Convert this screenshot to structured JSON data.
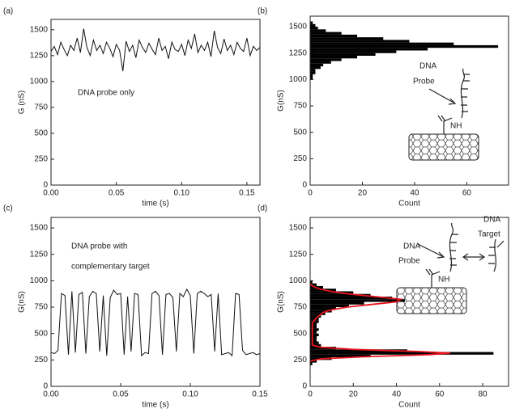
{
  "chart_data": [
    {
      "type": "line",
      "label": "(a)",
      "annotation": [
        "DNA probe only"
      ],
      "xlabel": "time (s)",
      "ylabel": "G (nS)",
      "xlim": [
        0,
        0.16
      ],
      "xticks": [
        {
          "value": 0,
          "label": "0.00"
        },
        {
          "value": 0.05,
          "label": "0.05"
        },
        {
          "value": 0.1,
          "label": "0.10"
        },
        {
          "value": 0.15,
          "label": "0.15"
        }
      ],
      "ylim": [
        0,
        1600
      ],
      "yticks": [
        0,
        250,
        500,
        750,
        1000,
        1250,
        1500
      ],
      "color": "#111111",
      "x": [
        0,
        0.0025,
        0.005,
        0.0075,
        0.01,
        0.0125,
        0.015,
        0.0175,
        0.02,
        0.0225,
        0.025,
        0.0275,
        0.03,
        0.0325,
        0.035,
        0.0375,
        0.04,
        0.0425,
        0.045,
        0.0475,
        0.05,
        0.0525,
        0.055,
        0.0575,
        0.06,
        0.0625,
        0.065,
        0.0675,
        0.07,
        0.0725,
        0.075,
        0.0775,
        0.08,
        0.0825,
        0.085,
        0.0875,
        0.09,
        0.0925,
        0.095,
        0.0975,
        0.1,
        0.1025,
        0.105,
        0.1075,
        0.11,
        0.1125,
        0.115,
        0.1175,
        0.12,
        0.1225,
        0.125,
        0.1275,
        0.13,
        0.1325,
        0.135,
        0.1375,
        0.14,
        0.1425,
        0.145,
        0.1475,
        0.15,
        0.1525,
        0.155,
        0.1575,
        0.16
      ],
      "values": [
        1290,
        1340,
        1260,
        1380,
        1310,
        1250,
        1350,
        1300,
        1420,
        1280,
        1510,
        1330,
        1250,
        1400,
        1300,
        1350,
        1270,
        1380,
        1320,
        1240,
        1360,
        1300,
        1100,
        1390,
        1290,
        1350,
        1230,
        1400,
        1330,
        1280,
        1370,
        1310,
        1260,
        1420,
        1300,
        1340,
        1220,
        1380,
        1310,
        1290,
        1360,
        1250,
        1400,
        1320,
        1460,
        1280,
        1350,
        1300,
        1380,
        1240,
        1490,
        1330,
        1270,
        1410,
        1300,
        1350,
        1260,
        1380,
        1320,
        1290,
        1420,
        1250,
        1340,
        1300,
        1330
      ]
    },
    {
      "type": "histogram",
      "label": "(b)",
      "xlabel": "Count",
      "ylabel": "G(nS)",
      "diagram_labels": [
        "DNA",
        "Probe",
        "NH"
      ],
      "xlim": [
        0,
        76
      ],
      "xticks": [
        0,
        20,
        40,
        60
      ],
      "ylim": [
        0,
        1600
      ],
      "yticks": [
        0,
        250,
        500,
        750,
        1000,
        1250,
        1500
      ],
      "color": "#000000",
      "bins": [
        1000,
        1025,
        1050,
        1075,
        1100,
        1125,
        1150,
        1175,
        1200,
        1225,
        1250,
        1275,
        1300,
        1325,
        1350,
        1375,
        1400,
        1425,
        1450,
        1475,
        1500,
        1525,
        1550
      ],
      "counts": [
        1,
        1,
        2,
        2,
        4,
        5,
        8,
        12,
        18,
        25,
        33,
        45,
        72,
        55,
        38,
        28,
        18,
        12,
        6,
        3,
        2,
        1
      ]
    },
    {
      "type": "line",
      "label": "(c)",
      "annotation": [
        "DNA probe with",
        "complementary target"
      ],
      "xlabel": "time (s)",
      "ylabel": "G(nS)",
      "xlim": [
        0,
        0.15
      ],
      "xticks": [
        {
          "value": 0,
          "label": "0.00"
        },
        {
          "value": 0.05,
          "label": "0.05"
        },
        {
          "value": 0.1,
          "label": "0.10"
        },
        {
          "value": 0.15,
          "label": "0.15"
        }
      ],
      "ylim": [
        0,
        1600
      ],
      "yticks": [
        0,
        250,
        500,
        750,
        1000,
        1250,
        1500
      ],
      "color": "#111111",
      "x": [
        0,
        0.0025,
        0.005,
        0.0075,
        0.01,
        0.0125,
        0.015,
        0.0175,
        0.02,
        0.0225,
        0.025,
        0.0275,
        0.03,
        0.0325,
        0.035,
        0.0375,
        0.04,
        0.0425,
        0.045,
        0.0475,
        0.05,
        0.0525,
        0.055,
        0.0575,
        0.06,
        0.0625,
        0.065,
        0.0675,
        0.07,
        0.0725,
        0.075,
        0.0775,
        0.08,
        0.0825,
        0.085,
        0.0875,
        0.09,
        0.0925,
        0.095,
        0.0975,
        0.1,
        0.1025,
        0.105,
        0.1075,
        0.11,
        0.1125,
        0.115,
        0.1175,
        0.12,
        0.1225,
        0.125,
        0.1275,
        0.13,
        0.1325,
        0.135,
        0.1375,
        0.14,
        0.1425,
        0.145,
        0.1475,
        0.15
      ],
      "values": [
        320,
        310,
        340,
        880,
        860,
        300,
        900,
        320,
        870,
        890,
        310,
        850,
        900,
        880,
        330,
        860,
        290,
        840,
        910,
        870,
        880,
        300,
        850,
        330,
        880,
        870,
        290,
        320,
        310,
        880,
        900,
        860,
        300,
        870,
        880,
        840,
        330,
        880,
        850,
        920,
        860,
        310,
        880,
        900,
        880,
        850,
        870,
        330,
        880,
        300,
        310,
        320,
        290,
        880,
        870,
        340,
        300,
        310,
        320,
        300,
        310
      ]
    },
    {
      "type": "histogram",
      "label": "(d)",
      "xlabel": "Count",
      "ylabel": "G(nS)",
      "diagram_labels": [
        "DNA",
        "Probe",
        "NH",
        "DNA",
        "Target"
      ],
      "xlim": [
        0,
        92
      ],
      "xticks": [
        0,
        20,
        40,
        60,
        80
      ],
      "ylim": [
        0,
        1600
      ],
      "yticks": [
        0,
        250,
        500,
        750,
        1000,
        1250,
        1500
      ],
      "color": "#000000",
      "bins": [
        200,
        225,
        250,
        275,
        300,
        325,
        350,
        375,
        400,
        425,
        450,
        475,
        500,
        525,
        550,
        575,
        600,
        625,
        650,
        675,
        700,
        725,
        750,
        775,
        800,
        825,
        850,
        875,
        900,
        925,
        950,
        975,
        1000
      ],
      "counts": [
        1,
        3,
        10,
        28,
        85,
        45,
        12,
        5,
        4,
        3,
        3,
        4,
        3,
        4,
        3,
        3,
        4,
        4,
        5,
        7,
        10,
        12,
        18,
        25,
        44,
        38,
        28,
        20,
        12,
        6,
        3,
        1
      ],
      "fit": {
        "color": "#e8141c",
        "g": [
          240,
          260,
          280,
          300,
          315,
          330,
          350,
          370,
          390,
          600,
          650,
          700,
          725,
          750,
          775,
          800,
          825,
          850,
          875,
          900,
          925,
          950,
          970
        ],
        "count": [
          0,
          5,
          25,
          55,
          65,
          50,
          20,
          5,
          1,
          1,
          3,
          6,
          10,
          17,
          28,
          40,
          42,
          30,
          18,
          9,
          4,
          1,
          0
        ]
      }
    }
  ]
}
